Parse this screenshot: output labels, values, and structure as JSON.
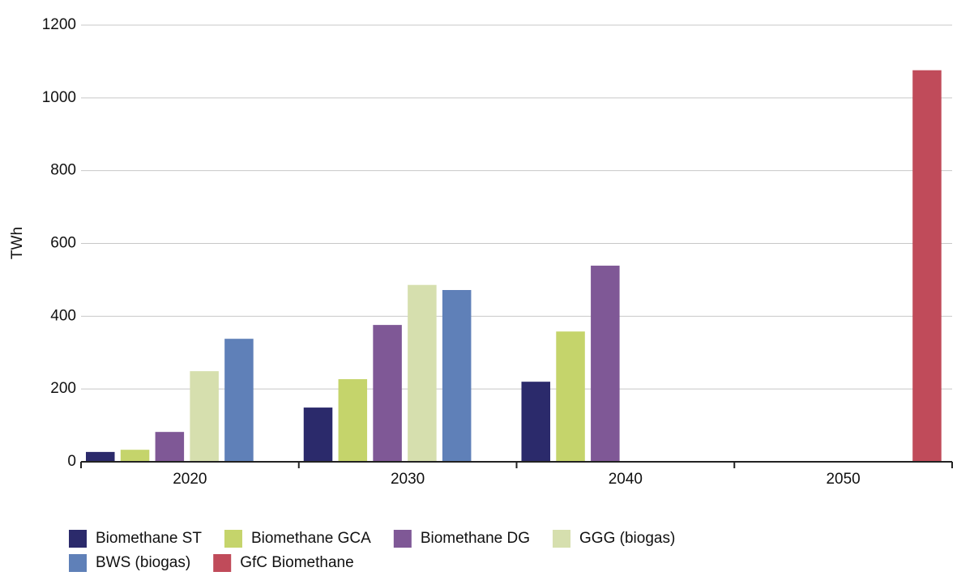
{
  "chart_data": {
    "type": "bar",
    "y_label": "TWh",
    "categories": [
      "2020",
      "2030",
      "2040",
      "2050"
    ],
    "series": [
      {
        "name": "Biomethane ST",
        "color": "#2b2a6b",
        "values": [
          27,
          149,
          220,
          null
        ]
      },
      {
        "name": "Biomethane GCA",
        "color": "#c5d46b",
        "values": [
          33,
          227,
          358,
          null
        ]
      },
      {
        "name": "Biomethane DG",
        "color": "#7f5896",
        "values": [
          82,
          376,
          539,
          null
        ]
      },
      {
        "name": "GGG (biogas)",
        "color": "#d6dfae",
        "values": [
          249,
          486,
          null,
          null
        ]
      },
      {
        "name": "BWS (biogas)",
        "color": "#5f80b8",
        "values": [
          338,
          472,
          null,
          null
        ]
      },
      {
        "name": "GfC Biomethane",
        "color": "#c04b5a",
        "values": [
          null,
          null,
          null,
          1076
        ]
      }
    ],
    "ylim": [
      0,
      1200
    ],
    "yticks": [
      0,
      200,
      400,
      600,
      800,
      1000,
      1200
    ],
    "grid": true,
    "legend": "bottom"
  }
}
